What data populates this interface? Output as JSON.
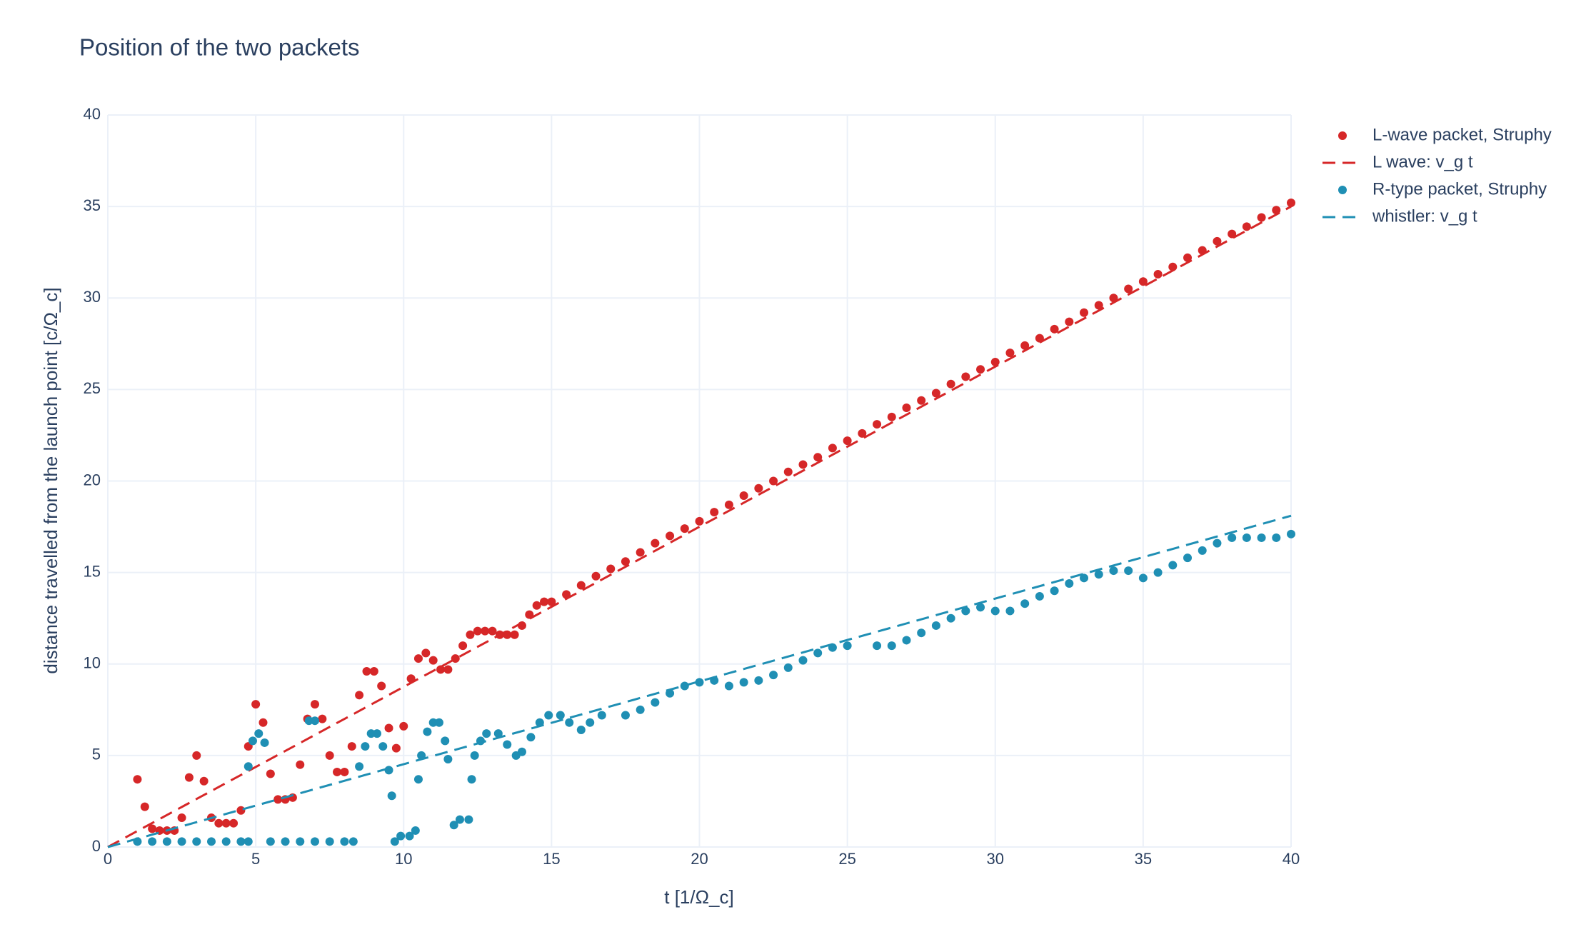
{
  "chart_data": {
    "type": "scatter",
    "title": "Position of the two packets",
    "x_label": "t [1/Ω_c]",
    "y_label": "distance travelled from the launch point [c/Ω_c]",
    "xlim": [
      0,
      40
    ],
    "ylim": [
      0,
      40
    ],
    "xticks": [
      0,
      5,
      10,
      15,
      20,
      25,
      30,
      35,
      40
    ],
    "yticks": [
      0,
      5,
      10,
      15,
      20,
      25,
      30,
      35,
      40
    ],
    "grid": true,
    "legend": "right",
    "series": [
      {
        "name": "L-wave packet, Struphy",
        "mode": "markers",
        "color": "#d62728",
        "x": [
          1.0,
          1.25,
          1.5,
          1.75,
          2.0,
          2.25,
          2.5,
          2.75,
          3.0,
          3.25,
          3.5,
          3.75,
          4.0,
          4.25,
          4.5,
          4.75,
          5.0,
          5.25,
          5.5,
          5.75,
          6.0,
          6.25,
          6.5,
          6.75,
          7.0,
          7.25,
          7.5,
          7.75,
          8.0,
          8.25,
          8.5,
          8.75,
          9.0,
          9.25,
          9.5,
          9.75,
          10.0,
          10.25,
          10.5,
          10.75,
          11.0,
          11.25,
          11.5,
          11.75,
          12.0,
          12.25,
          12.5,
          12.75,
          13.0,
          13.25,
          13.5,
          13.75,
          14.0,
          14.25,
          14.5,
          14.75,
          15.0,
          15.5,
          16,
          16.5,
          17,
          17.5,
          18,
          18.5,
          19,
          19.5,
          20,
          20.5,
          21,
          21.5,
          22,
          22.5,
          23,
          23.5,
          24,
          24.5,
          25,
          25.5,
          26,
          26.5,
          27,
          27.5,
          28,
          28.5,
          29,
          29.5,
          30,
          30.5,
          31,
          31.5,
          32,
          32.5,
          33,
          33.5,
          34,
          34.5,
          35,
          35.5,
          36,
          36.5,
          37,
          37.5,
          38,
          38.5,
          39,
          39.5,
          40
        ],
        "values": [
          3.7,
          2.2,
          1.0,
          0.9,
          0.9,
          0.9,
          1.6,
          3.8,
          5.0,
          3.6,
          1.6,
          1.3,
          1.3,
          1.3,
          2.0,
          5.5,
          7.8,
          6.8,
          4.0,
          2.6,
          2.6,
          2.7,
          4.5,
          7.0,
          7.8,
          7.0,
          5.0,
          4.1,
          4.1,
          5.5,
          8.3,
          9.6,
          9.6,
          8.8,
          6.5,
          5.4,
          6.6,
          9.2,
          10.3,
          10.6,
          10.2,
          9.7,
          9.7,
          10.3,
          11.0,
          11.6,
          11.8,
          11.8,
          11.8,
          11.6,
          11.6,
          11.6,
          12.1,
          12.7,
          13.2,
          13.4,
          13.4,
          13.8,
          14.3,
          14.8,
          15.2,
          15.6,
          16.1,
          16.6,
          17.0,
          17.4,
          17.8,
          18.3,
          18.7,
          19.2,
          19.6,
          20.0,
          20.5,
          20.9,
          21.3,
          21.8,
          22.2,
          22.6,
          23.1,
          23.5,
          24.0,
          24.4,
          24.8,
          25.3,
          25.7,
          26.1,
          26.5,
          27.0,
          27.4,
          27.8,
          28.3,
          28.7,
          29.2,
          29.6,
          30.0,
          30.5,
          30.9,
          31.3,
          31.7,
          32.2,
          32.6,
          33.1,
          33.5,
          33.9,
          34.4,
          34.8,
          35.2
        ]
      },
      {
        "name": "L wave: v_g t",
        "mode": "lines",
        "dash": true,
        "color": "#d62728",
        "x": [
          0,
          40
        ],
        "values": [
          0,
          35
        ]
      },
      {
        "name": "R-type packet, Struphy",
        "mode": "markers",
        "color": "#1f8fb4",
        "x": [
          1.0,
          1.5,
          2,
          2.5,
          3,
          3.5,
          4,
          4.5,
          4.75,
          4.75,
          4.9,
          5.1,
          5.3,
          5.5,
          6,
          6.5,
          6.8,
          7,
          7.0,
          7.5,
          8,
          8.3,
          8.5,
          8.7,
          8.9,
          9.1,
          9.3,
          9.5,
          9.6,
          9.7,
          9.9,
          10.2,
          10.4,
          10.5,
          10.6,
          10.8,
          11.0,
          11.2,
          11.4,
          11.5,
          11.7,
          11.9,
          12.2,
          12.3,
          12.4,
          12.6,
          12.8,
          13.2,
          13.5,
          13.8,
          14.0,
          14.3,
          14.6,
          14.9,
          15.3,
          15.6,
          16,
          16.3,
          16.7,
          17.5,
          18,
          18.5,
          19,
          19.5,
          20,
          20.5,
          21,
          21.5,
          22,
          22.5,
          23,
          23.5,
          24,
          24.5,
          25,
          26,
          26.5,
          27,
          27.5,
          28,
          28.5,
          29,
          29.5,
          30,
          30.5,
          31,
          31.5,
          32,
          32.5,
          33,
          33.5,
          34,
          34.5,
          35,
          35.5,
          36,
          36.5,
          37,
          37.5,
          38,
          38.5,
          39,
          39.5,
          40
        ],
        "values": [
          0.3,
          0.3,
          0.3,
          0.3,
          0.3,
          0.3,
          0.3,
          0.3,
          0.3,
          4.4,
          5.8,
          6.2,
          5.7,
          0.3,
          0.3,
          0.3,
          6.9,
          6.9,
          0.3,
          0.3,
          0.3,
          0.3,
          4.4,
          5.5,
          6.2,
          6.2,
          5.5,
          4.2,
          2.8,
          0.3,
          0.6,
          0.6,
          0.9,
          3.7,
          5.0,
          6.3,
          6.8,
          6.8,
          5.8,
          4.8,
          1.2,
          1.5,
          1.5,
          3.7,
          5.0,
          5.8,
          6.2,
          6.2,
          5.6,
          5.0,
          5.2,
          6.0,
          6.8,
          7.2,
          7.2,
          6.8,
          6.4,
          6.8,
          7.2,
          7.2,
          7.5,
          7.9,
          8.4,
          8.8,
          9.0,
          9.1,
          8.8,
          9.0,
          9.1,
          9.4,
          9.8,
          10.2,
          10.6,
          10.9,
          11.0,
          11.0,
          11.0,
          11.3,
          11.7,
          12.1,
          12.5,
          12.9,
          13.1,
          12.9,
          12.9,
          13.3,
          13.7,
          14.0,
          14.4,
          14.7,
          14.9,
          15.1,
          15.1,
          14.7,
          15.0,
          15.4,
          15.8,
          16.2,
          16.6,
          16.9,
          16.9,
          16.9,
          16.9,
          17.1
        ]
      },
      {
        "name": "whistler: v_g t",
        "mode": "lines",
        "dash": true,
        "color": "#1f8fb4",
        "x": [
          0,
          40
        ],
        "values": [
          0,
          18.1
        ]
      }
    ]
  }
}
